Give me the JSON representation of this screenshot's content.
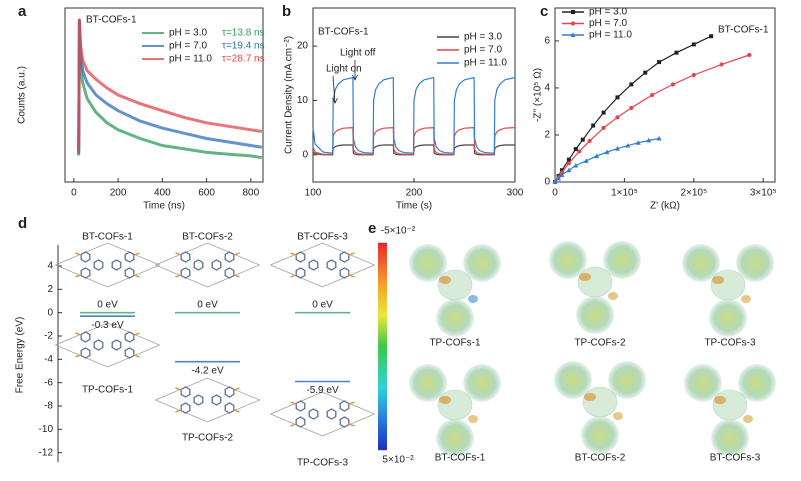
{
  "chart_data": [
    {
      "type": "line",
      "label": "a",
      "title": "BT-COFs-1",
      "xlabel": "Time (ns)",
      "ylabel": "Counts (a.u.)",
      "xlim": [
        -40,
        855
      ],
      "ylim": [
        0,
        1
      ],
      "xticks": [
        0,
        200,
        400,
        600,
        800
      ],
      "x": [
        15,
        22,
        25,
        30,
        40,
        60,
        100,
        150,
        200,
        300,
        400,
        500,
        600,
        700,
        800,
        850
      ],
      "series": [
        {
          "name": "pH = 3.0",
          "lifetime": "τ=13.8 ns",
          "color": "#2e9b5a",
          "values": [
            0.16,
            0.16,
            0.93,
            0.68,
            0.57,
            0.48,
            0.4,
            0.34,
            0.3,
            0.25,
            0.21,
            0.19,
            0.17,
            0.16,
            0.15,
            0.14
          ]
        },
        {
          "name": "pH = 7.0",
          "lifetime": "τ=19.4 ns",
          "color": "#2f6fb5",
          "values": [
            0.17,
            0.17,
            0.93,
            0.74,
            0.64,
            0.57,
            0.5,
            0.45,
            0.41,
            0.35,
            0.31,
            0.28,
            0.25,
            0.23,
            0.21,
            0.2
          ]
        },
        {
          "name": "pH = 11.0",
          "lifetime": "τ=28.7 ns",
          "color": "#e0474c",
          "values": [
            0.18,
            0.18,
            0.93,
            0.79,
            0.7,
            0.64,
            0.59,
            0.54,
            0.5,
            0.45,
            0.41,
            0.37,
            0.34,
            0.32,
            0.3,
            0.29
          ]
        }
      ]
    },
    {
      "type": "line",
      "label": "b",
      "title": "BT-COFs-1",
      "xlabel": "Time (s)",
      "ylabel": "Current Density (mA cm⁻²)",
      "annotations": [
        "Light on",
        "Light off"
      ],
      "xlim": [
        100,
        300
      ],
      "ylim": [
        -5,
        27
      ],
      "xticks": [
        100,
        200,
        300
      ],
      "yticks": [
        0,
        10,
        20
      ],
      "x": [
        100,
        102,
        110,
        119.5,
        120,
        122,
        125,
        130,
        139.5,
        140,
        142,
        145,
        150,
        159.5,
        160,
        162,
        165,
        170,
        179.5,
        180,
        182,
        185,
        190,
        199.5,
        200,
        202,
        205,
        210,
        219.5,
        220,
        222,
        225,
        230,
        239.5,
        240,
        242,
        245,
        250,
        259.5,
        260,
        262,
        265,
        270,
        279.5,
        280,
        282,
        285,
        290,
        299.5,
        300
      ],
      "series": [
        {
          "name": "pH = 3.0",
          "color": "#444444",
          "values": [
            0.5,
            0.2,
            0,
            0,
            1.2,
            1.5,
            1.7,
            1.8,
            1.8,
            0.3,
            0.1,
            0,
            0,
            0,
            1.2,
            1.5,
            1.7,
            1.8,
            1.8,
            0.3,
            0.1,
            0,
            0,
            0,
            1.2,
            1.5,
            1.7,
            1.8,
            1.8,
            0.3,
            0.1,
            0,
            0,
            0,
            1.2,
            1.5,
            1.7,
            1.8,
            1.8,
            0.3,
            0.1,
            0,
            0,
            0,
            1.2,
            1.5,
            1.7,
            1.8,
            1.8,
            1.8
          ]
        },
        {
          "name": "pH = 7.0",
          "color": "#e0474c",
          "values": [
            1.5,
            0.5,
            0.1,
            0.1,
            3.5,
            4.2,
            4.6,
            4.9,
            5,
            1,
            0.4,
            0.2,
            0.1,
            0.1,
            3.5,
            4.2,
            4.6,
            4.9,
            5,
            1,
            0.4,
            0.2,
            0.1,
            0.1,
            3.5,
            4.2,
            4.6,
            4.9,
            5,
            1,
            0.4,
            0.2,
            0.1,
            0.1,
            3.5,
            4.2,
            4.6,
            4.9,
            5,
            1,
            0.4,
            0.2,
            0.1,
            0.1,
            3.5,
            4.2,
            4.6,
            4.9,
            5,
            5
          ]
        },
        {
          "name": "pH = 11.0",
          "color": "#2f7fd0",
          "values": [
            5,
            2,
            0.5,
            0.3,
            10,
            12,
            13,
            13.8,
            14.2,
            3,
            1.5,
            0.8,
            0.4,
            0.3,
            10,
            12,
            13,
            13.8,
            14.2,
            3,
            1.5,
            0.8,
            0.4,
            0.3,
            10,
            12,
            13,
            13.8,
            14.2,
            3,
            1.5,
            0.8,
            0.4,
            0.3,
            10,
            12,
            13,
            13.8,
            14.2,
            3,
            1.5,
            0.8,
            0.4,
            0.3,
            10,
            12,
            13,
            13.8,
            14.2,
            14.3
          ]
        }
      ]
    },
    {
      "type": "scatter",
      "label": "c",
      "title": "BT-COFs-1",
      "xlabel": "Z' (kΩ)",
      "ylabel": "-Z'' (×10⁵ Ω)",
      "xlim": [
        0,
        317000
      ],
      "ylim": [
        0,
        7.4
      ],
      "xticks": [
        0,
        {
          "value": 100000,
          "label": "1×10⁵"
        },
        {
          "value": 200000,
          "label": "2×10⁵"
        },
        {
          "value": 300000,
          "label": "3×10⁵"
        }
      ],
      "yticks": [
        0,
        2,
        4,
        6
      ],
      "series": [
        {
          "name": "pH = 3.0",
          "color": "#222222",
          "marker": "square",
          "x": [
            0,
            5000,
            10000,
            20000,
            30000,
            40000,
            55000,
            70000,
            90000,
            110000,
            130000,
            150000,
            175000,
            200000,
            225000
          ],
          "values": [
            0,
            0.25,
            0.5,
            0.95,
            1.4,
            1.8,
            2.4,
            2.95,
            3.6,
            4.15,
            4.65,
            5.1,
            5.5,
            5.85,
            6.2
          ]
        },
        {
          "name": "pH = 7.0",
          "color": "#e0474c",
          "marker": "circle",
          "x": [
            0,
            5000,
            10000,
            20000,
            35000,
            50000,
            70000,
            90000,
            110000,
            140000,
            170000,
            200000,
            240000,
            280000
          ],
          "values": [
            0,
            0.2,
            0.4,
            0.8,
            1.3,
            1.75,
            2.3,
            2.75,
            3.15,
            3.7,
            4.15,
            4.55,
            5.0,
            5.4
          ]
        },
        {
          "name": "pH = 11.0",
          "color": "#2f7fd0",
          "marker": "triangle",
          "x": [
            0,
            5000,
            10000,
            20000,
            30000,
            45000,
            60000,
            75000,
            90000,
            105000,
            120000,
            135000,
            150000
          ],
          "values": [
            0,
            0.15,
            0.3,
            0.5,
            0.7,
            0.9,
            1.1,
            1.27,
            1.42,
            1.55,
            1.67,
            1.77,
            1.85
          ]
        }
      ]
    },
    {
      "type": "energy",
      "label": "d",
      "ylabel": "Free Energy (eV)",
      "ylim": [
        -12.8,
        5.8
      ],
      "yticks": [
        4,
        2,
        0,
        -2,
        -4,
        -6,
        -8,
        -10,
        -12
      ],
      "columns": [
        {
          "top": "BT-COFs-1",
          "bottom": "TP-COFs-1",
          "levels": [
            0,
            -0.3
          ],
          "level_labels": [
            "0 eV",
            "-0.3 eV"
          ],
          "colors": [
            "#5cb887",
            "#4a86c5"
          ]
        },
        {
          "top": "BT-COFs-2",
          "bottom": "TP-COFs-2",
          "levels": [
            0,
            -4.2
          ],
          "level_labels": [
            "0 eV",
            "-4.2 eV"
          ],
          "colors": [
            "#5cb887",
            "#4a86c5"
          ]
        },
        {
          "top": "BT-COFs-3",
          "bottom": "TP-COFs-3",
          "levels": [
            0,
            -5.9
          ],
          "level_labels": [
            "0 eV",
            "-5.9 eV"
          ],
          "colors": [
            "#5cb887",
            "#4a86c5"
          ]
        }
      ]
    },
    {
      "type": "esp",
      "label": "e",
      "clim": [
        -0.05,
        0.05
      ],
      "cticks": [
        {
          "value": -0.05,
          "label": "-5×10⁻²"
        },
        {
          "value": 0.05,
          "label": "5×10⁻²"
        }
      ],
      "structures": [
        "TP-COFs-1",
        "TP-COFs-2",
        "TP-COFs-3",
        "BT-COFs-1",
        "BT-COFs-2",
        "BT-COFs-3"
      ]
    }
  ]
}
